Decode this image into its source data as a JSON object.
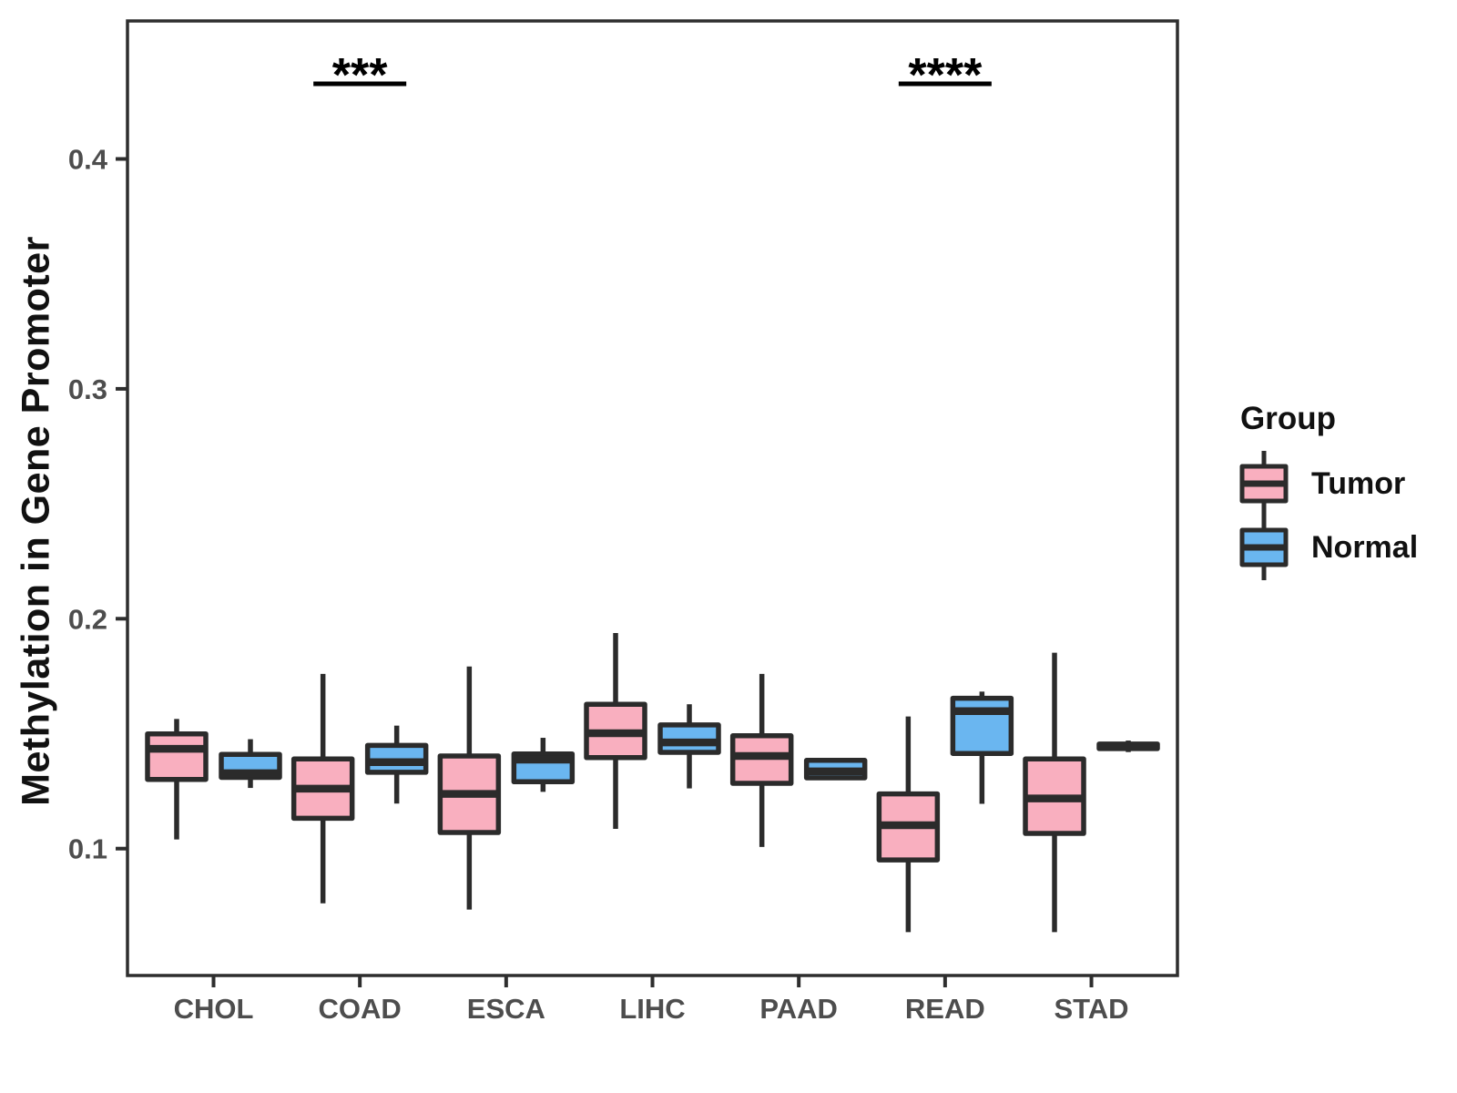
{
  "figure": {
    "y_axis_title": "Methylation in Gene Promoter",
    "legend": {
      "title": "Group",
      "items": [
        {
          "label": "Tumor",
          "color": "#F9AFBF"
        },
        {
          "label": "Normal",
          "color": "#6AB6F0"
        }
      ]
    }
  },
  "chart_data": {
    "type": "boxplot",
    "title": "",
    "xlabel": "",
    "ylabel": "Methylation in Gene Promoter",
    "categories": [
      "CHOL",
      "COAD",
      "ESCA",
      "LIHC",
      "PAAD",
      "READ",
      "STAD"
    ],
    "y_axis": {
      "ticks": [
        0.1,
        0.2,
        0.3,
        0.4
      ],
      "tick_labels": [
        "0.1",
        "0.2",
        "0.3",
        "0.4"
      ],
      "range": [
        0.045,
        0.46
      ],
      "grid": false
    },
    "legend_position": "right",
    "series": [
      {
        "name": "Tumor",
        "color": "#F9AFBF",
        "stats": [
          {
            "category": "CHOL",
            "min": 0.104,
            "q1": 0.1301,
            "median": 0.1434,
            "q3": 0.1499,
            "max": 0.1564
          },
          {
            "category": "COAD",
            "min": 0.0762,
            "q1": 0.1132,
            "median": 0.1261,
            "q3": 0.139,
            "max": 0.176
          },
          {
            "category": "ESCA",
            "min": 0.0735,
            "q1": 0.107,
            "median": 0.1238,
            "q3": 0.1403,
            "max": 0.1792
          },
          {
            "category": "LIHC",
            "min": 0.1086,
            "q1": 0.1396,
            "median": 0.1502,
            "q3": 0.1628,
            "max": 0.1938
          },
          {
            "category": "PAAD",
            "min": 0.1007,
            "q1": 0.1284,
            "median": 0.1403,
            "q3": 0.1491,
            "max": 0.176
          },
          {
            "category": "READ",
            "min": 0.0637,
            "q1": 0.0951,
            "median": 0.1102,
            "q3": 0.1238,
            "max": 0.1575
          },
          {
            "category": "STAD",
            "min": 0.0637,
            "q1": 0.1066,
            "median": 0.1218,
            "q3": 0.139,
            "max": 0.1852
          }
        ]
      },
      {
        "name": "Normal",
        "color": "#6AB6F0",
        "stats": [
          {
            "category": "CHOL",
            "min": 0.1264,
            "q1": 0.131,
            "median": 0.1328,
            "q3": 0.141,
            "max": 0.1476
          },
          {
            "category": "COAD",
            "min": 0.1196,
            "q1": 0.1332,
            "median": 0.1376,
            "q3": 0.1449,
            "max": 0.1535
          },
          {
            "category": "ESCA",
            "min": 0.1247,
            "q1": 0.1291,
            "median": 0.1387,
            "q3": 0.1412,
            "max": 0.1482
          },
          {
            "category": "LIHC",
            "min": 0.1262,
            "q1": 0.1419,
            "median": 0.1462,
            "q3": 0.1538,
            "max": 0.1628
          },
          {
            "category": "PAAD",
            "min": 0.13,
            "q1": 0.1308,
            "median": 0.1336,
            "q3": 0.1384,
            "max": 0.139
          },
          {
            "category": "READ",
            "min": 0.1195,
            "q1": 0.1414,
            "median": 0.1598,
            "q3": 0.1654,
            "max": 0.1683
          },
          {
            "category": "STAD",
            "min": 0.142,
            "q1": 0.1435,
            "median": 0.1445,
            "q3": 0.1455,
            "max": 0.147
          }
        ]
      }
    ],
    "significance": [
      {
        "category": "COAD",
        "label": "***"
      },
      {
        "category": "READ",
        "label": "****"
      }
    ],
    "styles": {
      "box_border_color": "#2B2B2B",
      "axis_color": "#2E2E2E",
      "tick_label_color": "#4D4D4D",
      "annotation_color": "#000000"
    }
  }
}
